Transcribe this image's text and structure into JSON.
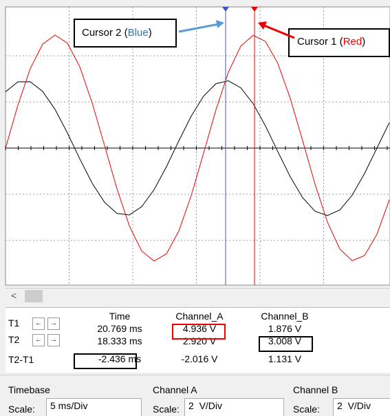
{
  "callouts": {
    "cursor2": {
      "prefix": "Cursor 2 (",
      "color_word": "Blue",
      "suffix": ")"
    },
    "cursor1": {
      "prefix": "Cursor 1 (",
      "color_word": "Red",
      "suffix": ")"
    }
  },
  "scroll_left": "<",
  "readout": {
    "headers": [
      "Time",
      "Channel_A",
      "Channel_B"
    ],
    "rows": [
      {
        "label": "T1",
        "values": [
          "20.769 ms",
          "4.936 V",
          "1.876 V"
        ]
      },
      {
        "label": "T2",
        "values": [
          "18.333 ms",
          "2.920 V",
          "3.008 V"
        ]
      },
      {
        "label": "T2-T1",
        "values": [
          "-2.436 ms",
          "-2.016 V",
          "1.131 V"
        ]
      }
    ]
  },
  "settings": [
    {
      "title": "Timebase",
      "scale_label": "Scale:",
      "scale": "5 ms/Div"
    },
    {
      "title": "Channel A",
      "scale_label": "Scale:",
      "scale": "2  V/Div"
    },
    {
      "title": "Channel B",
      "scale_label": "Scale:",
      "scale": "2  V/Div"
    }
  ]
}
